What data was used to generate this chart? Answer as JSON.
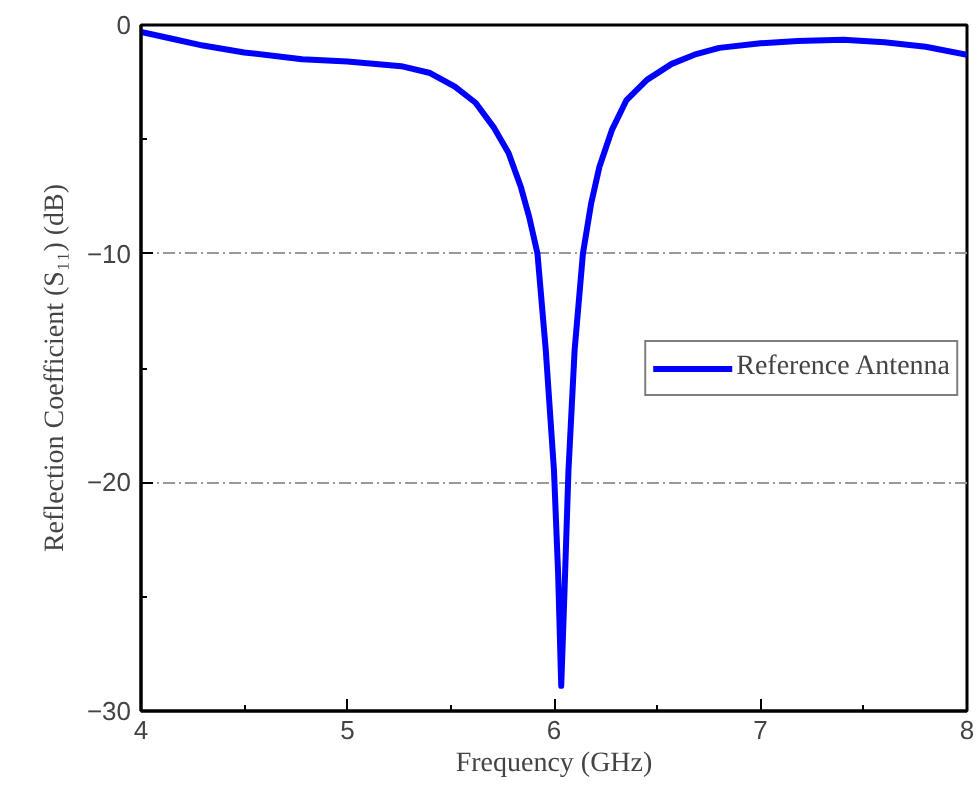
{
  "chart_data": {
    "type": "line",
    "xlabel": "Frequency (GHz)",
    "ylabel": "Reflection Coefficient (S₁₁) (dB)",
    "xlim": [
      4,
      8
    ],
    "ylim": [
      -30,
      0
    ],
    "xticks": [
      4,
      5,
      6,
      7,
      8
    ],
    "yticks": [
      -30,
      -20,
      -10,
      0
    ],
    "grid": "y",
    "legend": "right",
    "series": [
      {
        "name": "Reference Antenna",
        "color": "#0000ff",
        "x": [
          4,
          4.15,
          4.3,
          4.5,
          4.78,
          5.0,
          5.26,
          5.4,
          5.52,
          5.62,
          5.71,
          5.78,
          5.84,
          5.88,
          5.92,
          5.96,
          6.0,
          6.02,
          6.035,
          6.05,
          6.07,
          6.1,
          6.14,
          6.18,
          6.22,
          6.28,
          6.35,
          6.45,
          6.57,
          6.68,
          6.8,
          7.0,
          7.18,
          7.4,
          7.6,
          7.8,
          8
        ],
        "values": [
          -0.3,
          -0.6,
          -0.9,
          -1.2,
          -1.5,
          -1.6,
          -1.8,
          -2.1,
          -2.7,
          -3.4,
          -4.5,
          -5.6,
          -7.1,
          -8.4,
          -10,
          -14.2,
          -19.5,
          -24,
          -28.9,
          -25,
          -19.5,
          -14.2,
          -10,
          -7.8,
          -6.2,
          -4.6,
          -3.3,
          -2.4,
          -1.7,
          -1.3,
          -1.0,
          -0.8,
          -0.7,
          -0.65,
          -0.75,
          -0.95,
          -1.3
        ]
      }
    ]
  }
}
